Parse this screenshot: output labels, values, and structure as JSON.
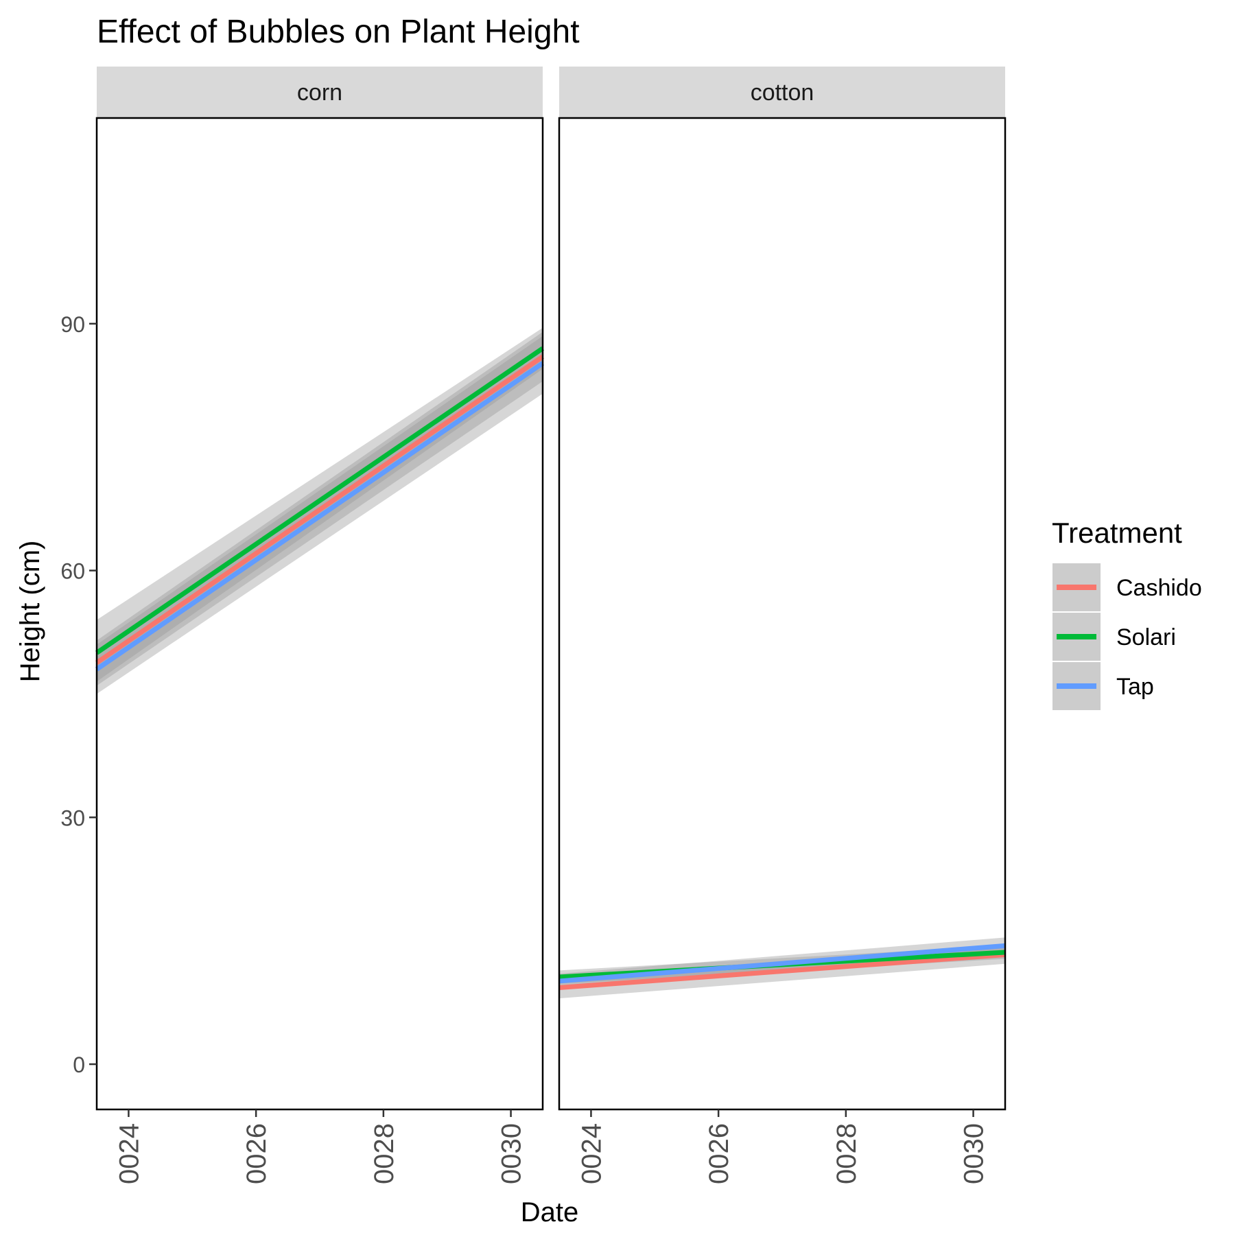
{
  "chart_data": {
    "type": "line",
    "title": "Effect of Bubbles on Plant Height",
    "xlabel": "Date",
    "ylabel": "Height (cm)",
    "x_domain": [
      "0023-07-01",
      "0030-07-01"
    ],
    "x_ticks": [
      "0024",
      "0026",
      "0028",
      "0030"
    ],
    "x_tick_years": [
      24,
      26,
      28,
      30
    ],
    "ylim": [
      -5.5,
      115
    ],
    "y_ticks": [
      0,
      30,
      60,
      90
    ],
    "grid": false,
    "legend_title": "Treatment",
    "legend_position": "right",
    "panels": [
      {
        "label": "corn",
        "series": [
          {
            "name": "Cashido",
            "color": "#F8766D",
            "x": [
              "0023-07-01",
              "0030-07-01"
            ],
            "y": [
              48.8,
              86.0
            ],
            "ci_lower": [
              46.0,
              83.0
            ],
            "ci_upper": [
              51.5,
              89.0
            ]
          },
          {
            "name": "Solari",
            "color": "#00BA38",
            "x": [
              "0023-07-01",
              "0030-07-01"
            ],
            "y": [
              50.0,
              87.0
            ],
            "ci_lower": [
              46.5,
              84.5
            ],
            "ci_upper": [
              54.0,
              89.5
            ]
          },
          {
            "name": "Tap",
            "color": "#619CFF",
            "x": [
              "0023-07-01",
              "0030-07-01"
            ],
            "y": [
              48.0,
              85.2
            ],
            "ci_lower": [
              45.0,
              81.5
            ],
            "ci_upper": [
              51.0,
              88.5
            ]
          }
        ]
      },
      {
        "label": "cotton",
        "series": [
          {
            "name": "Cashido",
            "color": "#F8766D",
            "x": [
              "0023-07-01",
              "0030-07-01"
            ],
            "y": [
              9.3,
              13.3
            ],
            "ci_lower": [
              8.0,
              12.2
            ],
            "ci_upper": [
              10.6,
              14.4
            ]
          },
          {
            "name": "Solari",
            "color": "#00BA38",
            "x": [
              "0023-07-01",
              "0030-07-01"
            ],
            "y": [
              10.6,
              13.6
            ],
            "ci_lower": [
              9.8,
              12.8
            ],
            "ci_upper": [
              11.4,
              14.4
            ]
          },
          {
            "name": "Tap",
            "color": "#619CFF",
            "x": [
              "0023-07-01",
              "0030-07-01"
            ],
            "y": [
              10.1,
              14.4
            ],
            "ci_lower": [
              9.2,
              13.4
            ],
            "ci_upper": [
              11.0,
              15.4
            ]
          }
        ]
      }
    ]
  }
}
